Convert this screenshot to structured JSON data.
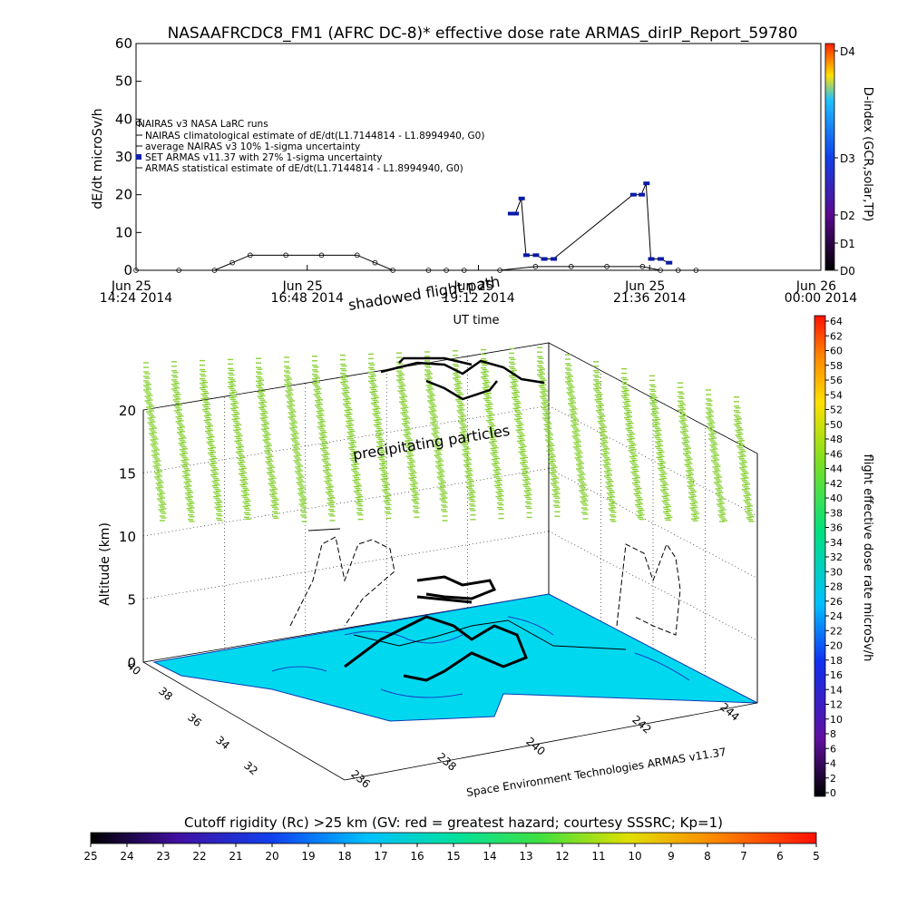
{
  "title": "NASAAFRCDC8_FM1 (AFRC DC-8)* effective dose rate ARMAS_dirIP_Report_59780",
  "chart_data": [
    {
      "type": "line",
      "ylabel": "dE/dt microSv/h",
      "xlabel": "UT time",
      "ylim": [
        0,
        60
      ],
      "yticks": [
        "0",
        "10",
        "20",
        "30",
        "40",
        "50",
        "60"
      ],
      "xticks": [
        {
          "date": "Jun 25",
          "time": "14:24",
          "year": "2014"
        },
        {
          "date": "Jun 25",
          "time": "16:48",
          "year": "2014"
        },
        {
          "date": "Jun 25",
          "time": "19:12",
          "year": "2014"
        },
        {
          "date": "Jun 25",
          "time": "21:36",
          "year": "2014"
        },
        {
          "date": "Jun 26",
          "time": "00:00",
          "year": "2014"
        }
      ],
      "legend": [
        "NAIRAS v3 NASA LaRC runs",
        "NAIRAS climatological estimate of dE/dt(L1.7144814 - L1.8994940, G0)",
        "average NAIRAS v3 10% 1-sigma uncertainty",
        "SET ARMAS v11.37 with 27% 1-sigma uncertainty",
        "ARMAS statistical estimate of dE/dt(L1.7144814 - L1.8994940, G0)"
      ],
      "series": [
        {
          "name": "NAIRAS climatological estimate",
          "color": "#000000",
          "x": [
            "14:24",
            "15:00",
            "15:30",
            "15:45",
            "16:00",
            "16:30",
            "17:00",
            "17:30",
            "17:45",
            "18:00",
            "18:30",
            "18:45",
            "19:00",
            "19:30",
            "20:00",
            "20:30",
            "21:00",
            "21:30",
            "21:45",
            "22:00",
            "22:15"
          ],
          "values": [
            0,
            0,
            0,
            2,
            4,
            4,
            4,
            4,
            2,
            0,
            0,
            0,
            0,
            0,
            1,
            1,
            1,
            1,
            0,
            0,
            0
          ]
        },
        {
          "name": "ARMAS",
          "color": "#0a1aa8",
          "x": [
            "19:39",
            "19:43",
            "19:48",
            "19:52",
            "20:00",
            "20:07",
            "20:15",
            "21:22",
            "21:29",
            "21:33",
            "21:37",
            "21:45",
            "21:52"
          ],
          "values": [
            15,
            15,
            19,
            4,
            4,
            3,
            3,
            20,
            20,
            23,
            3,
            3,
            2
          ]
        }
      ],
      "colorbar": {
        "label": "D-index (GCR,solar,TP)",
        "ticks": [
          "D0",
          "D1",
          "D2",
          "D3",
          "D4"
        ]
      }
    },
    {
      "type": "scatter",
      "zlabel": "Altitude (km)",
      "zticks": [
        "0",
        "5",
        "10",
        "15",
        "20"
      ],
      "xticks": [
        "236",
        "238",
        "240",
        "242",
        "244"
      ],
      "yticks": [
        "32",
        "34",
        "36",
        "38",
        "40"
      ],
      "annotations": [
        "shadowed flight path",
        "precipitating particles"
      ],
      "credit": "Space Environment Technologies ARMAS v11.37",
      "colorbar": {
        "label": "flight effective dose rate microSv/h",
        "range": [
          0,
          64
        ],
        "ticks": [
          "0",
          "2",
          "4",
          "6",
          "8",
          "10",
          "12",
          "14",
          "16",
          "18",
          "20",
          "22",
          "24",
          "26",
          "28",
          "30",
          "32",
          "34",
          "36",
          "38",
          "40",
          "42",
          "44",
          "46",
          "48",
          "50",
          "52",
          "54",
          "56",
          "58",
          "60",
          "62",
          "64"
        ]
      }
    },
    {
      "type": "heatmap",
      "title": "Cutoff rigidity (Rc) >25 km (GV: red = greatest hazard; courtesy SSSRC; Kp=1)",
      "range": [
        25,
        5
      ],
      "ticks": [
        "25",
        "24",
        "23",
        "22",
        "21",
        "20",
        "19",
        "18",
        "17",
        "16",
        "15",
        "14",
        "13",
        "12",
        "11",
        "10",
        "9",
        "8",
        "7",
        "6",
        "5"
      ]
    }
  ],
  "colors": {
    "map_fill": "#00d8f0",
    "particles": "#8ad23a",
    "armas_marker": "#1020b0"
  }
}
